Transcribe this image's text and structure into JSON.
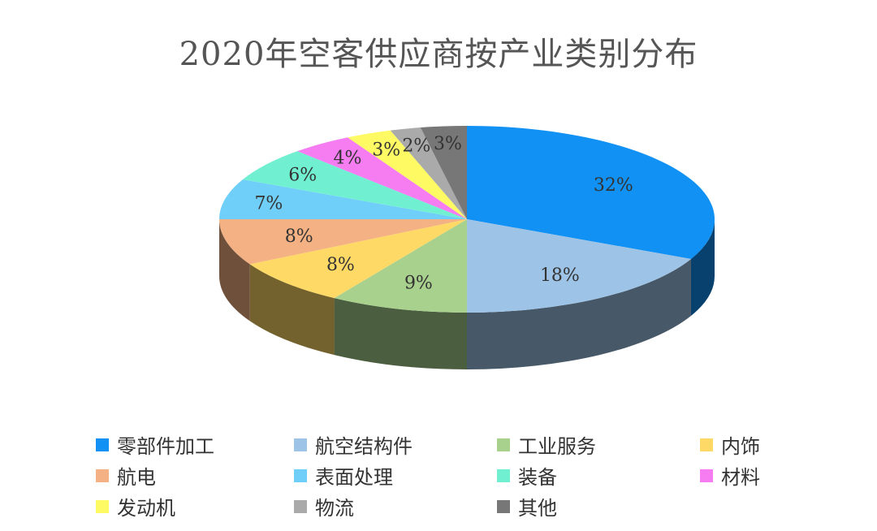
{
  "chart_data": {
    "type": "pie",
    "title": "2020年空客供应商按产业类别分布",
    "categories": [
      "零部件加工",
      "航空结构件",
      "工业服务",
      "内饰",
      "航电",
      "表面处理",
      "装备",
      "材料",
      "发动机",
      "物流",
      "其他"
    ],
    "values": [
      32,
      18,
      9,
      8,
      8,
      7,
      6,
      4,
      3,
      2,
      3
    ],
    "value_labels": [
      "32%",
      "18%",
      "9%",
      "8%",
      "8%",
      "7%",
      "6%",
      "4%",
      "3%",
      "2%",
      "3%"
    ],
    "colors": [
      "#1191f3",
      "#9dc3e6",
      "#a9d18e",
      "#ffd966",
      "#f4b183",
      "#6fcff8",
      "#71f0d1",
      "#f67cf2",
      "#fefa64",
      "#aaaaaa",
      "#777777"
    ],
    "legend_position": "bottom",
    "style": "3d-exploded-pie"
  }
}
